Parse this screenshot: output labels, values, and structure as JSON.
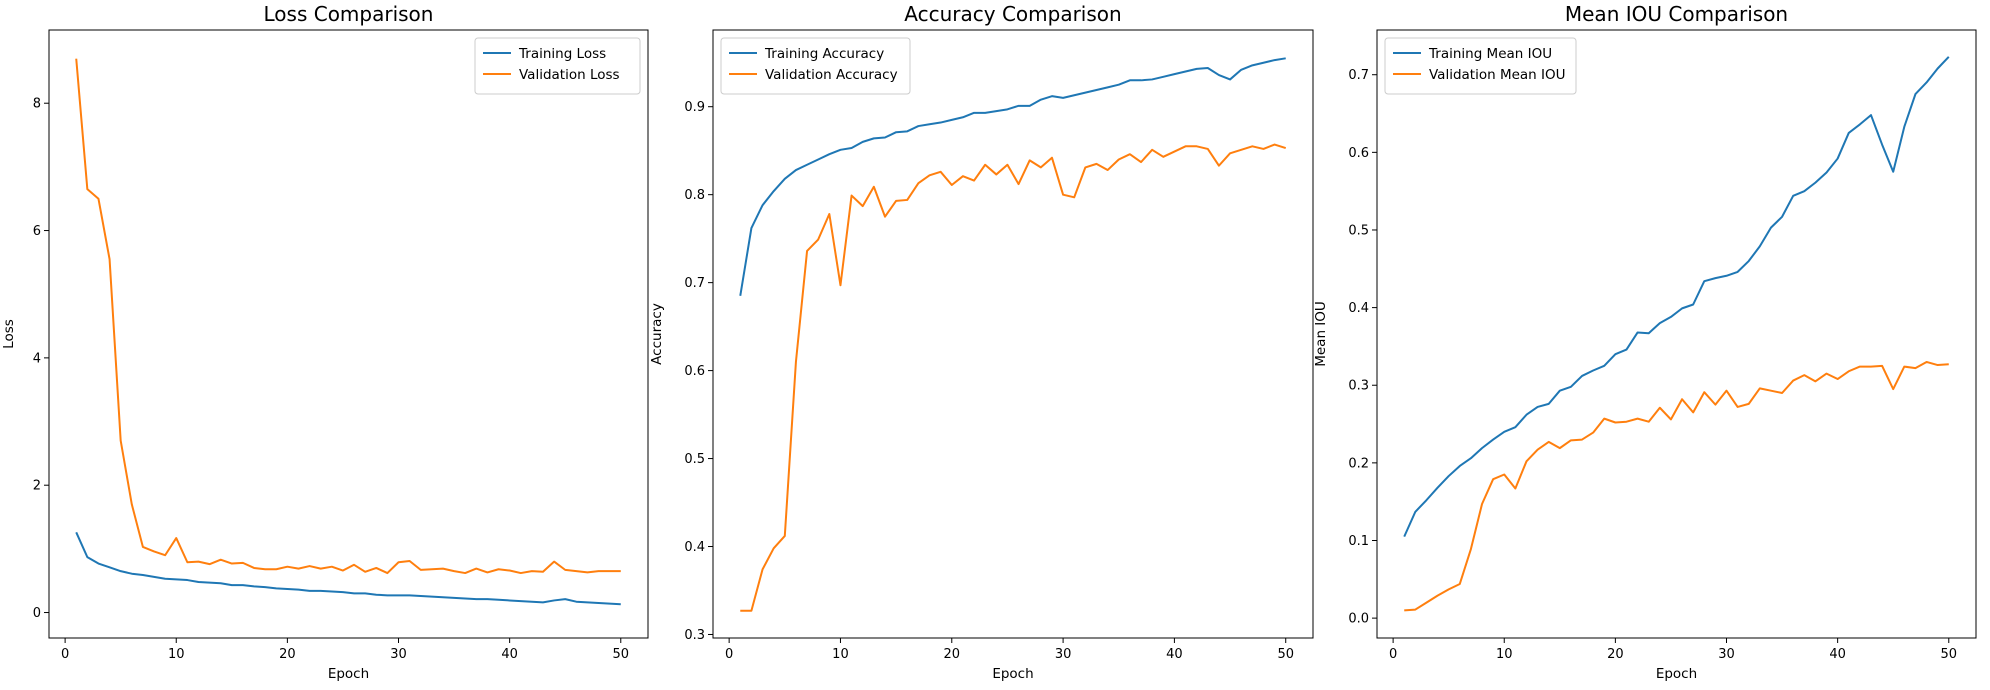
{
  "chart_data": [
    {
      "type": "line",
      "title": "Loss Comparison",
      "xlabel": "Epoch",
      "ylabel": "Loss",
      "xlim": [
        -1.45,
        52.45
      ],
      "ylim": [
        -0.4,
        9.15
      ],
      "xticks": [
        0,
        10,
        20,
        30,
        40,
        50
      ],
      "yticks": [
        0,
        2,
        4,
        6,
        8
      ],
      "legend_position": "top-right",
      "series": [
        {
          "name": "Training Loss",
          "color": "#1f77b4",
          "x": [
            1,
            2,
            3,
            4,
            5,
            6,
            7,
            8,
            9,
            10,
            11,
            12,
            13,
            14,
            15,
            16,
            17,
            18,
            19,
            20,
            21,
            22,
            23,
            24,
            25,
            26,
            27,
            28,
            29,
            30,
            31,
            32,
            33,
            34,
            35,
            36,
            37,
            38,
            39,
            40,
            41,
            42,
            43,
            44,
            45,
            46,
            47,
            48,
            49,
            50
          ],
          "values": [
            1.26,
            0.87,
            0.77,
            0.71,
            0.65,
            0.61,
            0.59,
            0.56,
            0.53,
            0.52,
            0.51,
            0.48,
            0.47,
            0.46,
            0.43,
            0.43,
            0.41,
            0.4,
            0.38,
            0.37,
            0.36,
            0.34,
            0.34,
            0.33,
            0.32,
            0.3,
            0.3,
            0.28,
            0.27,
            0.27,
            0.27,
            0.26,
            0.25,
            0.24,
            0.23,
            0.22,
            0.21,
            0.21,
            0.2,
            0.19,
            0.18,
            0.17,
            0.16,
            0.19,
            0.21,
            0.17,
            0.16,
            0.15,
            0.14,
            0.13
          ]
        },
        {
          "name": "Validation Loss",
          "color": "#ff7f0e",
          "x": [
            1,
            2,
            3,
            4,
            5,
            6,
            7,
            8,
            9,
            10,
            11,
            12,
            13,
            14,
            15,
            16,
            17,
            18,
            19,
            20,
            21,
            22,
            23,
            24,
            25,
            26,
            27,
            28,
            29,
            30,
            31,
            32,
            33,
            34,
            35,
            36,
            37,
            38,
            39,
            40,
            41,
            42,
            43,
            44,
            45,
            46,
            47,
            48,
            49,
            50
          ],
          "values": [
            8.7,
            6.65,
            6.5,
            5.55,
            2.7,
            1.7,
            1.03,
            0.96,
            0.9,
            1.17,
            0.79,
            0.8,
            0.76,
            0.83,
            0.77,
            0.78,
            0.7,
            0.68,
            0.68,
            0.72,
            0.69,
            0.73,
            0.69,
            0.72,
            0.66,
            0.75,
            0.64,
            0.7,
            0.62,
            0.79,
            0.81,
            0.67,
            0.68,
            0.69,
            0.65,
            0.62,
            0.69,
            0.63,
            0.68,
            0.66,
            0.62,
            0.65,
            0.64,
            0.8,
            0.67,
            0.65,
            0.63,
            0.65,
            0.65,
            0.65
          ]
        }
      ]
    },
    {
      "type": "line",
      "title": "Accuracy Comparison",
      "xlabel": "Epoch",
      "ylabel": "Accuracy",
      "xlim": [
        -1.45,
        52.45
      ],
      "ylim": [
        0.296,
        0.9872
      ],
      "xticks": [
        0,
        10,
        20,
        30,
        40,
        50
      ],
      "yticks": [
        0.3,
        0.4,
        0.5,
        0.6,
        0.7,
        0.8,
        0.9
      ],
      "legend_position": "top-left",
      "series": [
        {
          "name": "Training Accuracy",
          "color": "#1f77b4",
          "x": [
            1,
            2,
            3,
            4,
            5,
            6,
            7,
            8,
            9,
            10,
            11,
            12,
            13,
            14,
            15,
            16,
            17,
            18,
            19,
            20,
            21,
            22,
            23,
            24,
            25,
            26,
            27,
            28,
            29,
            30,
            31,
            32,
            33,
            34,
            35,
            36,
            37,
            38,
            39,
            40,
            41,
            42,
            43,
            44,
            45,
            46,
            47,
            48,
            49,
            50
          ],
          "values": [
            0.685,
            0.762,
            0.788,
            0.804,
            0.818,
            0.828,
            0.834,
            0.84,
            0.846,
            0.851,
            0.853,
            0.86,
            0.864,
            0.865,
            0.871,
            0.872,
            0.878,
            0.88,
            0.882,
            0.885,
            0.888,
            0.893,
            0.893,
            0.895,
            0.897,
            0.901,
            0.901,
            0.908,
            0.912,
            0.91,
            0.913,
            0.916,
            0.919,
            0.922,
            0.925,
            0.93,
            0.93,
            0.931,
            0.934,
            0.937,
            0.94,
            0.943,
            0.944,
            0.936,
            0.931,
            0.942,
            0.947,
            0.95,
            0.953,
            0.955
          ]
        },
        {
          "name": "Validation Accuracy",
          "color": "#ff7f0e",
          "x": [
            1,
            2,
            3,
            4,
            5,
            6,
            7,
            8,
            9,
            10,
            11,
            12,
            13,
            14,
            15,
            16,
            17,
            18,
            19,
            20,
            21,
            22,
            23,
            24,
            25,
            26,
            27,
            28,
            29,
            30,
            31,
            32,
            33,
            34,
            35,
            36,
            37,
            38,
            39,
            40,
            41,
            42,
            43,
            44,
            45,
            46,
            47,
            48,
            49,
            50
          ],
          "values": [
            0.327,
            0.327,
            0.374,
            0.398,
            0.412,
            0.61,
            0.736,
            0.749,
            0.778,
            0.697,
            0.799,
            0.787,
            0.809,
            0.775,
            0.793,
            0.794,
            0.813,
            0.822,
            0.826,
            0.811,
            0.821,
            0.816,
            0.834,
            0.823,
            0.834,
            0.812,
            0.839,
            0.831,
            0.842,
            0.8,
            0.797,
            0.831,
            0.835,
            0.828,
            0.84,
            0.846,
            0.837,
            0.851,
            0.843,
            0.849,
            0.855,
            0.855,
            0.852,
            0.833,
            0.847,
            0.851,
            0.855,
            0.852,
            0.857,
            0.853
          ]
        }
      ]
    },
    {
      "type": "line",
      "title": "Mean IOU Comparison",
      "xlabel": "Epoch",
      "ylabel": "Mean IOU",
      "xlim": [
        -1.45,
        52.45
      ],
      "ylim": [
        -0.0256,
        0.7576
      ],
      "xticks": [
        0,
        10,
        20,
        30,
        40,
        50
      ],
      "yticks": [
        0.0,
        0.1,
        0.2,
        0.3,
        0.4,
        0.5,
        0.6,
        0.7
      ],
      "legend_position": "top-left",
      "series": [
        {
          "name": "Training Mean IOU",
          "color": "#1f77b4",
          "x": [
            1,
            2,
            3,
            4,
            5,
            6,
            7,
            8,
            9,
            10,
            11,
            12,
            13,
            14,
            15,
            16,
            17,
            18,
            19,
            20,
            21,
            22,
            23,
            24,
            25,
            26,
            27,
            28,
            29,
            30,
            31,
            32,
            33,
            34,
            35,
            36,
            37,
            38,
            39,
            40,
            41,
            42,
            43,
            44,
            45,
            46,
            47,
            48,
            49,
            50
          ],
          "values": [
            0.105,
            0.137,
            0.152,
            0.168,
            0.183,
            0.196,
            0.206,
            0.219,
            0.23,
            0.24,
            0.246,
            0.262,
            0.272,
            0.276,
            0.293,
            0.298,
            0.312,
            0.319,
            0.325,
            0.34,
            0.346,
            0.368,
            0.367,
            0.38,
            0.388,
            0.399,
            0.404,
            0.434,
            0.438,
            0.441,
            0.446,
            0.46,
            0.479,
            0.503,
            0.517,
            0.544,
            0.55,
            0.561,
            0.574,
            0.592,
            0.625,
            0.636,
            0.648,
            0.61,
            0.575,
            0.633,
            0.675,
            0.69,
            0.708,
            0.723
          ]
        },
        {
          "name": "Validation Mean IOU",
          "color": "#ff7f0e",
          "x": [
            1,
            2,
            3,
            4,
            5,
            6,
            7,
            8,
            9,
            10,
            11,
            12,
            13,
            14,
            15,
            16,
            17,
            18,
            19,
            20,
            21,
            22,
            23,
            24,
            25,
            26,
            27,
            28,
            29,
            30,
            31,
            32,
            33,
            34,
            35,
            36,
            37,
            38,
            39,
            40,
            41,
            42,
            43,
            44,
            45,
            46,
            47,
            48,
            49,
            50
          ],
          "values": [
            0.01,
            0.011,
            0.02,
            0.029,
            0.037,
            0.044,
            0.089,
            0.147,
            0.179,
            0.185,
            0.167,
            0.202,
            0.217,
            0.227,
            0.219,
            0.229,
            0.23,
            0.239,
            0.257,
            0.252,
            0.253,
            0.257,
            0.253,
            0.271,
            0.256,
            0.282,
            0.265,
            0.291,
            0.275,
            0.293,
            0.272,
            0.276,
            0.296,
            0.293,
            0.29,
            0.306,
            0.313,
            0.305,
            0.315,
            0.308,
            0.318,
            0.324,
            0.324,
            0.325,
            0.295,
            0.324,
            0.322,
            0.33,
            0.326,
            0.327
          ]
        }
      ]
    }
  ]
}
